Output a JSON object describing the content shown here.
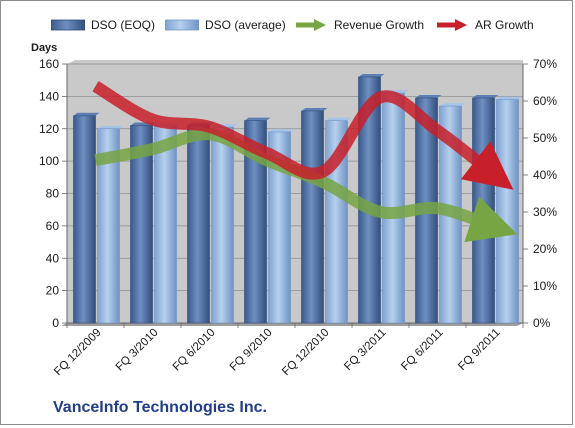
{
  "company_label": "VanceInfo Technologies Inc.",
  "colors": {
    "dso_eoq": "#4d6c9c",
    "dso_avg": "#8fb2de",
    "revenue_growth": "#77a543",
    "ar_growth": "#c8202a",
    "plot_bg": "#c9c9c9"
  },
  "chart_data": {
    "type": "bar",
    "categories": [
      "FQ 12/2009",
      "FQ 3/2010",
      "FQ 6/2010",
      "FQ 9/2010",
      "FQ 12/2010",
      "FQ 3/2011",
      "FQ 6/2011",
      "FQ 9/2011"
    ],
    "ylabel": "Days",
    "ylim": [
      0,
      160
    ],
    "yticks": [
      "0",
      "20",
      "40",
      "60",
      "80",
      "100",
      "120",
      "140",
      "160"
    ],
    "y2lim": [
      0,
      70
    ],
    "y2ticks": [
      "0%",
      "10%",
      "20%",
      "30%",
      "40%",
      "50%",
      "60%",
      "70%"
    ],
    "grid": true,
    "legend_position": "top",
    "series": [
      {
        "name": "DSO (EOQ)",
        "kind": "bar",
        "axis": "left",
        "values": [
          128,
          122,
          122,
          125,
          131,
          152,
          139,
          139
        ]
      },
      {
        "name": "DSO (average)",
        "kind": "bar",
        "axis": "left",
        "values": [
          120,
          122,
          121,
          118,
          125,
          142,
          134,
          138
        ]
      },
      {
        "name": "Revenue Growth",
        "kind": "line",
        "axis": "right",
        "values": [
          44,
          47,
          51,
          44,
          38,
          30,
          31,
          26
        ]
      },
      {
        "name": "AR Growth",
        "kind": "line",
        "axis": "right",
        "values": [
          64,
          55,
          53,
          46,
          41,
          61,
          52,
          40
        ]
      }
    ]
  }
}
